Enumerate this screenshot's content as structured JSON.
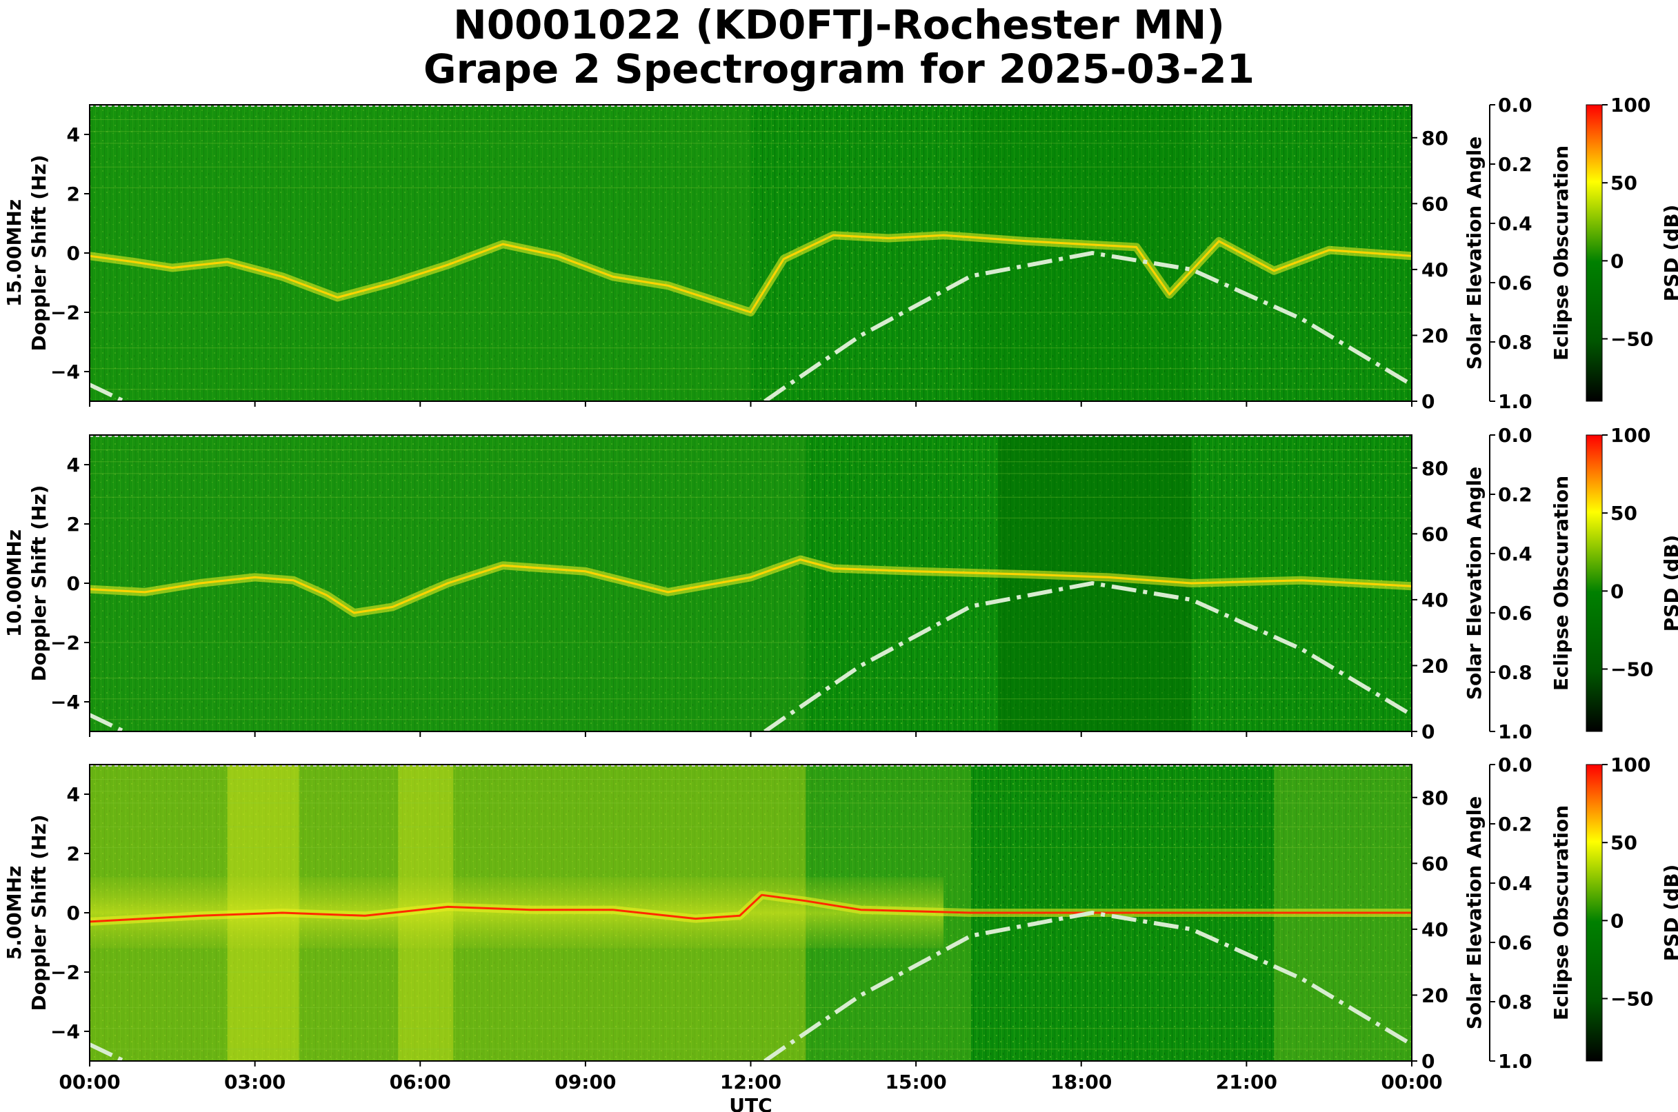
{
  "chart_data": {
    "type": "heatmap",
    "title_line1": "N0001022 (KD0FTJ-Rochester MN)",
    "title_line2": "Grape 2 Spectrogram for 2025-03-21",
    "xlabel": "UTC",
    "x_ticks": [
      "00:00",
      "03:00",
      "06:00",
      "09:00",
      "12:00",
      "15:00",
      "18:00",
      "21:00",
      "00:00"
    ],
    "x_range_hours": [
      0,
      24
    ],
    "y_ticks": [
      4,
      2,
      0,
      -2,
      -4
    ],
    "y_tick_labels": [
      "4",
      "2",
      "0",
      "−2",
      "−4"
    ],
    "y_range": [
      -5,
      5
    ],
    "elev_label": "Solar Elevation Angle",
    "elev_ticks": [
      0,
      20,
      40,
      60,
      80
    ],
    "elev_range": [
      0,
      90
    ],
    "eclipse_label": "Eclipse Obscuration",
    "eclipse_ticks": [
      "0.0",
      "0.2",
      "0.4",
      "0.6",
      "0.8",
      "1.0"
    ],
    "colorbar_label": "PSD (dB)",
    "colorbar_ticks": [
      100,
      50,
      0,
      -50
    ],
    "colorbar_tick_labels": [
      "100",
      "50",
      "0",
      "−50"
    ],
    "colorbar_range": [
      -90,
      100
    ],
    "colormap": [
      "#000000",
      "#005500",
      "#008000",
      "#ffff00",
      "#ff0000"
    ],
    "panels": [
      {
        "ylabel_freq": "15.00MHz",
        "ylabel": "Doppler Shift (Hz)",
        "doppler_trace": [
          [
            0.0,
            -0.1
          ],
          [
            0.8,
            -0.3
          ],
          [
            1.5,
            -0.5
          ],
          [
            2.5,
            -0.3
          ],
          [
            3.5,
            -0.8
          ],
          [
            4.5,
            -1.5
          ],
          [
            5.5,
            -1.0
          ],
          [
            6.5,
            -0.4
          ],
          [
            7.5,
            0.3
          ],
          [
            8.5,
            -0.1
          ],
          [
            9.5,
            -0.8
          ],
          [
            10.5,
            -1.1
          ],
          [
            12.0,
            -2.0
          ],
          [
            12.6,
            -0.2
          ],
          [
            13.5,
            0.6
          ],
          [
            14.5,
            0.5
          ],
          [
            15.5,
            0.6
          ],
          [
            17.0,
            0.4
          ],
          [
            18.0,
            0.3
          ],
          [
            19.0,
            0.2
          ],
          [
            19.6,
            -1.4
          ],
          [
            20.5,
            0.4
          ],
          [
            21.5,
            -0.6
          ],
          [
            22.5,
            0.1
          ],
          [
            24.0,
            -0.1
          ]
        ],
        "solar_elevation": [
          [
            0.0,
            5
          ],
          [
            1.0,
            -3
          ],
          [
            12.0,
            -3
          ],
          [
            12.6,
            4
          ],
          [
            14.0,
            20
          ],
          [
            16.0,
            38
          ],
          [
            18.2,
            45
          ],
          [
            20.0,
            40
          ],
          [
            22.0,
            25
          ],
          [
            24.0,
            5
          ]
        ]
      },
      {
        "ylabel_freq": "10.00MHz",
        "ylabel": "Doppler Shift (Hz)",
        "doppler_trace": [
          [
            0.0,
            -0.2
          ],
          [
            1.0,
            -0.3
          ],
          [
            2.0,
            0.0
          ],
          [
            3.0,
            0.2
          ],
          [
            3.7,
            0.1
          ],
          [
            4.3,
            -0.4
          ],
          [
            4.8,
            -1.0
          ],
          [
            5.5,
            -0.8
          ],
          [
            6.5,
            0.0
          ],
          [
            7.5,
            0.6
          ],
          [
            9.0,
            0.4
          ],
          [
            10.5,
            -0.3
          ],
          [
            12.0,
            0.2
          ],
          [
            12.9,
            0.8
          ],
          [
            13.5,
            0.5
          ],
          [
            15.0,
            0.4
          ],
          [
            17.0,
            0.3
          ],
          [
            18.5,
            0.2
          ],
          [
            20.0,
            0.0
          ],
          [
            22.0,
            0.1
          ],
          [
            24.0,
            -0.1
          ]
        ],
        "solar_elevation": [
          [
            0.0,
            5
          ],
          [
            1.0,
            -3
          ],
          [
            12.0,
            -3
          ],
          [
            12.6,
            4
          ],
          [
            14.0,
            20
          ],
          [
            16.0,
            38
          ],
          [
            18.2,
            45
          ],
          [
            20.0,
            40
          ],
          [
            22.0,
            25
          ],
          [
            24.0,
            5
          ]
        ]
      },
      {
        "ylabel_freq": "5.00MHz",
        "ylabel": "Doppler Shift (Hz)",
        "doppler_trace": [
          [
            0.0,
            -0.3
          ],
          [
            2.0,
            -0.1
          ],
          [
            3.5,
            0.0
          ],
          [
            5.0,
            -0.1
          ],
          [
            6.5,
            0.2
          ],
          [
            8.0,
            0.1
          ],
          [
            9.5,
            0.1
          ],
          [
            11.0,
            -0.2
          ],
          [
            11.8,
            -0.1
          ],
          [
            12.2,
            0.6
          ],
          [
            13.0,
            0.4
          ],
          [
            14.0,
            0.1
          ],
          [
            16.0,
            0.0
          ],
          [
            20.0,
            0.0
          ],
          [
            24.0,
            0.0
          ]
        ],
        "solar_elevation": [
          [
            0.0,
            5
          ],
          [
            1.0,
            -3
          ],
          [
            12.0,
            -3
          ],
          [
            12.6,
            4
          ],
          [
            14.0,
            20
          ],
          [
            16.0,
            38
          ],
          [
            18.2,
            45
          ],
          [
            20.0,
            40
          ],
          [
            22.0,
            25
          ],
          [
            24.0,
            5
          ]
        ]
      }
    ]
  }
}
